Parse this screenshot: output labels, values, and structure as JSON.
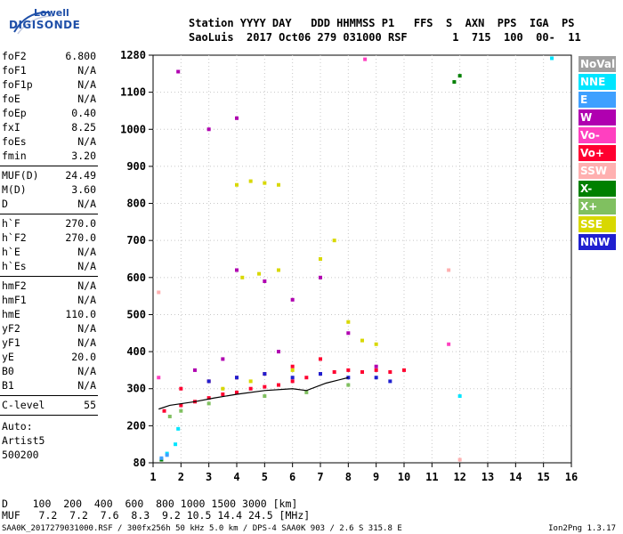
{
  "logo": {
    "top": "Lowell",
    "bottom": "DIGISONDE"
  },
  "header": {
    "line1": "Station YYYY DAY   DDD HHMMSS P1   FFS  S  AXN  PPS  IGA  PS",
    "line2": "SaoLuis  2017 Oct06 279 031000 RSF       1  715  100  00-  11"
  },
  "params_group1": [
    {
      "k": "foF2",
      "v": "6.800"
    },
    {
      "k": "foF1",
      "v": "N/A"
    },
    {
      "k": "foF1p",
      "v": "N/A"
    },
    {
      "k": "foE",
      "v": "N/A"
    },
    {
      "k": "foEp",
      "v": "0.40"
    },
    {
      "k": "fxI",
      "v": "8.25"
    },
    {
      "k": "foEs",
      "v": "N/A"
    },
    {
      "k": "fmin",
      "v": "3.20"
    }
  ],
  "params_group2": [
    {
      "k": "MUF(D)",
      "v": "24.49"
    },
    {
      "k": "M(D)",
      "v": "3.60"
    },
    {
      "k": "D",
      "v": "N/A"
    }
  ],
  "params_group3": [
    {
      "k": "h`F",
      "v": "270.0"
    },
    {
      "k": "h`F2",
      "v": "270.0"
    },
    {
      "k": "h`E",
      "v": "N/A"
    },
    {
      "k": "h`Es",
      "v": "N/A"
    }
  ],
  "params_group4": [
    {
      "k": "hmF2",
      "v": "N/A"
    },
    {
      "k": "hmF1",
      "v": "N/A"
    },
    {
      "k": "hmE",
      "v": "110.0"
    },
    {
      "k": "yF2",
      "v": "N/A"
    },
    {
      "k": "yF1",
      "v": "N/A"
    },
    {
      "k": "yE",
      "v": "20.0"
    },
    {
      "k": "B0",
      "v": "N/A"
    },
    {
      "k": "B1",
      "v": "N/A"
    }
  ],
  "params_group5": [
    {
      "k": "C-level",
      "v": "55"
    }
  ],
  "autoscaling": [
    "Auto:",
    "Artist5",
    "500200"
  ],
  "legend": [
    {
      "label": "NoVal",
      "color": "#a0a0a0"
    },
    {
      "label": "NNE",
      "color": "#00e5ff"
    },
    {
      "label": "E",
      "color": "#3fa0ff"
    },
    {
      "label": "W",
      "color": "#b000b0"
    },
    {
      "label": "Vo-",
      "color": "#ff40c0"
    },
    {
      "label": "Vo+",
      "color": "#ff0030"
    },
    {
      "label": "SSW",
      "color": "#ffb0b0"
    },
    {
      "label": "X-",
      "color": "#008000"
    },
    {
      "label": "X+",
      "color": "#80c060"
    },
    {
      "label": "SSE",
      "color": "#d8d800"
    },
    {
      "label": "NNW",
      "color": "#2020d0"
    }
  ],
  "footer": {
    "d_row": "D    100  200  400  600  800 1000 1500 3000 [km]",
    "muf_row": "MUF   7.2  7.2  7.6  8.3  9.2 10.5 14.4 24.5 [MHz]",
    "file": "SAA0K_2017279031000.RSF / 300fx256h 50 kHz 5.0 km / DPS-4 SAA0K 903 / 2.6 S 315.8 E",
    "version": "Ion2Png 1.3.17"
  },
  "chart_data": {
    "type": "scatter",
    "title": "",
    "xlabel": "",
    "ylabel": "",
    "xlim": [
      1,
      16
    ],
    "ylim": [
      80,
      1280
    ],
    "x_ticks": [
      "1",
      "2",
      "3",
      "4",
      "5",
      "6",
      "7",
      "8",
      "9",
      "10",
      "11",
      "12",
      "13",
      "14",
      "15",
      "16"
    ],
    "y_ticks": [
      "80",
      "200",
      "300",
      "400",
      "500",
      "600",
      "700",
      "800",
      "900",
      "1000",
      "1100",
      "1280"
    ],
    "y_tick_values": [
      80,
      200,
      300,
      400,
      500,
      600,
      700,
      800,
      900,
      1000,
      1100,
      1280
    ],
    "series": [
      {
        "name": "Vo+",
        "points": [
          [
            1.4,
            240
          ],
          [
            2.0,
            255
          ],
          [
            2.5,
            265
          ],
          [
            3.0,
            275
          ],
          [
            3.5,
            285
          ],
          [
            4.0,
            290
          ],
          [
            4.5,
            300
          ],
          [
            5.0,
            305
          ],
          [
            5.5,
            310
          ],
          [
            6.0,
            320
          ],
          [
            6.5,
            330
          ],
          [
            7.0,
            340
          ],
          [
            7.5,
            345
          ],
          [
            8.0,
            350
          ],
          [
            8.5,
            345
          ],
          [
            9.0,
            350
          ],
          [
            9.5,
            345
          ],
          [
            10.0,
            350
          ],
          [
            2.0,
            300
          ],
          [
            3.0,
            320
          ],
          [
            4.0,
            330
          ],
          [
            5.0,
            340
          ],
          [
            6.0,
            360
          ],
          [
            7.0,
            380
          ]
        ]
      },
      {
        "name": "SSE",
        "points": [
          [
            4.0,
            850
          ],
          [
            4.5,
            860
          ],
          [
            5.0,
            855
          ],
          [
            5.5,
            850
          ],
          [
            4.2,
            600
          ],
          [
            4.8,
            610
          ],
          [
            5.5,
            620
          ],
          [
            7.0,
            650
          ],
          [
            7.5,
            700
          ],
          [
            8.0,
            480
          ],
          [
            8.5,
            430
          ],
          [
            9.0,
            420
          ],
          [
            3.5,
            300
          ],
          [
            4.5,
            320
          ],
          [
            6.0,
            350
          ]
        ]
      },
      {
        "name": "W",
        "points": [
          [
            1.9,
            1200
          ],
          [
            3.0,
            1000
          ],
          [
            4.0,
            1030
          ],
          [
            4.0,
            620
          ],
          [
            5.0,
            590
          ],
          [
            6.0,
            540
          ],
          [
            7.0,
            600
          ],
          [
            8.0,
            450
          ],
          [
            9.0,
            360
          ],
          [
            2.5,
            350
          ],
          [
            3.5,
            380
          ],
          [
            5.5,
            400
          ]
        ]
      },
      {
        "name": "NNW",
        "points": [
          [
            3.0,
            320
          ],
          [
            4.0,
            330
          ],
          [
            5.0,
            340
          ],
          [
            6.0,
            330
          ],
          [
            7.0,
            340
          ],
          [
            8.0,
            330
          ],
          [
            9.0,
            330
          ],
          [
            9.5,
            320
          ]
        ]
      },
      {
        "name": "NNE",
        "points": [
          [
            1.5,
            110
          ],
          [
            1.8,
            140
          ],
          [
            1.9,
            190
          ],
          [
            12.0,
            280
          ],
          [
            15.3,
            1265
          ]
        ]
      },
      {
        "name": "X+",
        "points": [
          [
            1.6,
            225
          ],
          [
            2.0,
            240
          ],
          [
            3.0,
            260
          ],
          [
            5.0,
            280
          ],
          [
            6.5,
            290
          ],
          [
            8.0,
            310
          ]
        ]
      },
      {
        "name": "X-",
        "points": [
          [
            1.3,
            90
          ],
          [
            11.8,
            1150
          ],
          [
            12.0,
            1180
          ]
        ]
      },
      {
        "name": "Vo-",
        "points": [
          [
            8.6,
            1260
          ],
          [
            11.6,
            420
          ],
          [
            1.2,
            330
          ]
        ]
      },
      {
        "name": "SSW",
        "points": [
          [
            1.2,
            560
          ],
          [
            11.6,
            620
          ],
          [
            12.0,
            90
          ]
        ]
      },
      {
        "name": "E",
        "points": [
          [
            1.3,
            95
          ],
          [
            1.5,
            105
          ]
        ]
      }
    ],
    "trace": {
      "name": "Vo+",
      "points": [
        [
          1.2,
          245
        ],
        [
          1.6,
          255
        ],
        [
          2.5,
          265
        ],
        [
          3.2,
          275
        ],
        [
          4.0,
          285
        ],
        [
          5.0,
          295
        ],
        [
          6.0,
          300
        ],
        [
          6.5,
          295
        ],
        [
          7.2,
          315
        ],
        [
          8.0,
          330
        ]
      ]
    },
    "legend_position": "right"
  }
}
